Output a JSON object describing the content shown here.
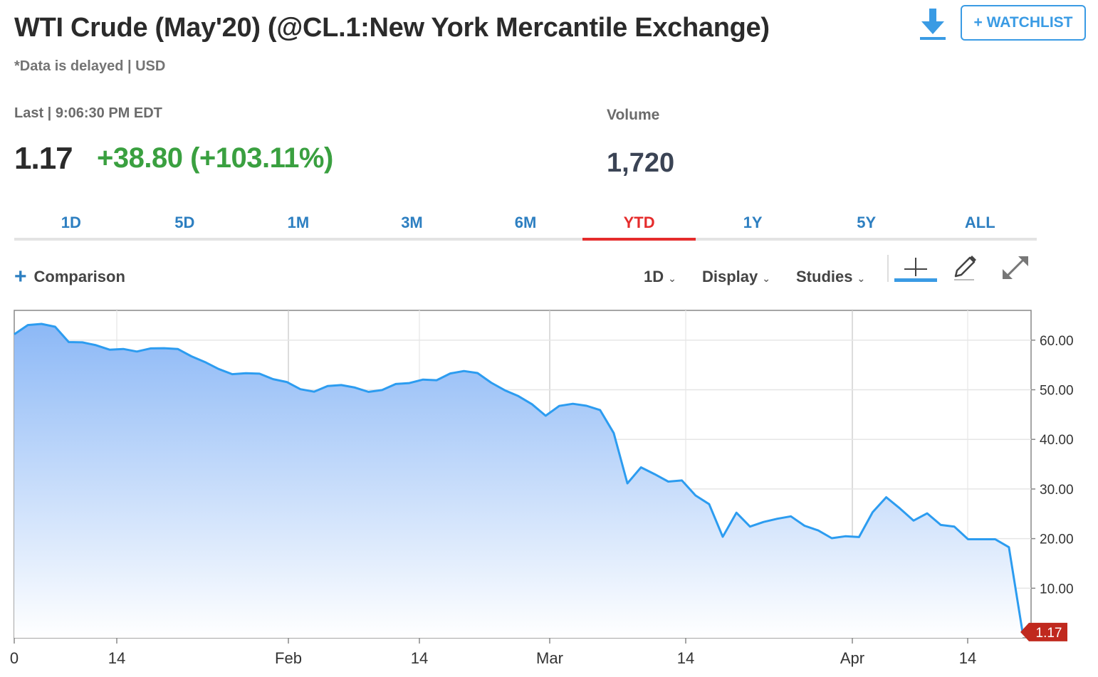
{
  "header": {
    "title": "WTI Crude (May'20) (@CL.1:New York Mercantile Exchange)",
    "subtitle": "*Data is delayed | USD",
    "watchlist_label": "+ WATCHLIST"
  },
  "quote": {
    "last_label": "Last | 9:06:30 PM EDT",
    "last_price": "1.17",
    "change": "+38.80 (+103.11%)",
    "volume_label": "Volume",
    "volume_value": "1,720"
  },
  "tabs": [
    {
      "label": "1D",
      "active": false
    },
    {
      "label": "5D",
      "active": false
    },
    {
      "label": "1M",
      "active": false
    },
    {
      "label": "3M",
      "active": false
    },
    {
      "label": "6M",
      "active": false
    },
    {
      "label": "YTD",
      "active": true
    },
    {
      "label": "1Y",
      "active": false
    },
    {
      "label": "5Y",
      "active": false
    },
    {
      "label": "ALL",
      "active": false
    }
  ],
  "controls": {
    "comparison_label": "Comparison",
    "interval_label": "1D",
    "display_label": "Display",
    "studies_label": "Studies"
  },
  "colors": {
    "accent": "#3a9be4",
    "line": "#2c9cf0",
    "positive": "#3aa040",
    "active_tab": "#e52c2c",
    "price_tag": "#c0291e"
  },
  "chart_data": {
    "type": "area",
    "x_tick_labels": [
      "0",
      "14",
      "Feb",
      "14",
      "Mar",
      "14",
      "Apr",
      "14"
    ],
    "y_tick_labels": [
      "60.00",
      "50.00",
      "40.00",
      "30.00",
      "20.00",
      "10.00"
    ],
    "ylim": [
      0,
      66
    ],
    "last_value_label": "1.17",
    "grid": true,
    "series": [
      {
        "values": [
          61.18,
          63.05,
          63.27,
          62.7,
          59.61,
          59.56,
          58.99,
          58.08,
          58.23,
          57.71,
          58.34,
          58.38,
          58.23,
          56.74,
          55.59,
          54.19,
          53.14,
          53.33,
          53.24,
          52.14,
          51.56,
          50.11,
          49.61,
          50.75,
          50.95,
          50.45,
          49.57,
          49.94,
          51.17,
          51.35,
          52.05,
          51.92,
          53.29,
          53.78,
          53.38,
          51.43,
          49.9,
          48.73,
          47.09,
          44.76,
          46.75,
          47.18,
          46.78,
          45.9,
          41.28,
          31.13,
          34.36,
          32.98,
          31.5,
          31.73,
          28.7,
          26.95,
          20.37,
          25.22,
          22.43,
          23.36,
          24.01,
          24.49,
          22.6,
          21.65,
          20.09,
          20.48,
          20.31,
          25.32,
          28.34,
          26.08,
          23.63,
          25.09,
          22.76,
          22.41,
          19.87,
          19.87,
          19.87,
          18.27,
          1.17
        ]
      }
    ]
  }
}
